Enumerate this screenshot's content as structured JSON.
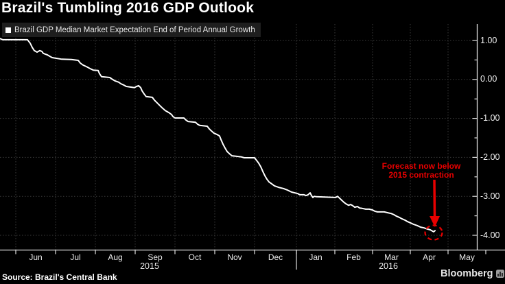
{
  "header": {
    "title": "Brazil's Tumbling 2016 GDP Outlook"
  },
  "legend": {
    "marker": "square-icon",
    "marker_color": "#ffffff",
    "label": "Brazil GDP Median Market Expectation End of Period Annual Growth"
  },
  "annotation": {
    "line1": "Forecast now below",
    "line2": "2015 contraction",
    "color": "#e80000"
  },
  "footer": {
    "source": "Source: Brazil's Central Bank",
    "brand": "Bloomberg"
  },
  "colors": {
    "background": "#000000",
    "line": "#ffffff",
    "axis": "#e0e0e0",
    "grid": "#3b3b3b",
    "accent_red": "#e80000",
    "legend_bg": "#1e1e1e"
  },
  "chart_data": {
    "type": "line",
    "title": "Brazil's Tumbling 2016 GDP Outlook",
    "series_name": "Brazil GDP Median Market Expectation End of Period Annual Growth",
    "x_tick_months": [
      "Jun",
      "Jul",
      "Aug",
      "Sep",
      "Oct",
      "Nov",
      "Dec",
      "Jan",
      "Feb",
      "Mar",
      "Apr",
      "May"
    ],
    "years": [
      "2015",
      "2016"
    ],
    "y_tick_values": [
      1.0,
      0.0,
      -1.0,
      -2.0,
      -3.0,
      -4.0
    ],
    "y_tick_labels": [
      "1.00",
      "0.00",
      "-1.00",
      "-2.00",
      "-3.00",
      "-4.00"
    ],
    "ylim": [
      -4.4,
      1.4
    ],
    "grid": "dotted",
    "legend_position": "top-left",
    "y_axis_side": "right",
    "monthly_values_at_tick": [
      {
        "month": "Jun 2015",
        "value": 1.02
      },
      {
        "month": "Jul 2015",
        "value": 0.55
      },
      {
        "month": "Aug 2015",
        "value": 0.24
      },
      {
        "month": "Sep 2015",
        "value": -0.2
      },
      {
        "month": "Oct 2015",
        "value": -0.98
      },
      {
        "month": "Nov 2015",
        "value": -1.41
      },
      {
        "month": "Dec 2015",
        "value": -2.01
      },
      {
        "month": "Jan 2016",
        "value": -2.92
      },
      {
        "month": "Feb 2016",
        "value": -3.03
      },
      {
        "month": "Mar 2016",
        "value": -3.47
      },
      {
        "month": "Apr 2016",
        "value": -3.7
      },
      {
        "month": "mid-Apr 2016 (final)",
        "value": -3.89
      }
    ],
    "line_points": [
      [
        0,
        1.05
      ],
      [
        4,
        1.02
      ],
      [
        40,
        1.02
      ],
      [
        44,
        0.93
      ],
      [
        47,
        0.82
      ],
      [
        50,
        0.74
      ],
      [
        54,
        0.7
      ],
      [
        58,
        0.74
      ],
      [
        61,
        0.72
      ],
      [
        63,
        0.67
      ],
      [
        66,
        0.65
      ],
      [
        69,
        0.63
      ],
      [
        72,
        0.6
      ],
      [
        76,
        0.56
      ],
      [
        90,
        0.52
      ],
      [
        104,
        0.51
      ],
      [
        114,
        0.49
      ],
      [
        117,
        0.42
      ],
      [
        121,
        0.37
      ],
      [
        126,
        0.33
      ],
      [
        131,
        0.28
      ],
      [
        136,
        0.24
      ],
      [
        143,
        0.23
      ],
      [
        145,
        0.15
      ],
      [
        148,
        0.07
      ],
      [
        160,
        0.05
      ],
      [
        164,
        0.0
      ],
      [
        168,
        -0.04
      ],
      [
        173,
        -0.07
      ],
      [
        176,
        -0.11
      ],
      [
        180,
        -0.14
      ],
      [
        184,
        -0.18
      ],
      [
        196,
        -0.21
      ],
      [
        199,
        -0.18
      ],
      [
        202,
        -0.16
      ],
      [
        205,
        -0.21
      ],
      [
        207,
        -0.29
      ],
      [
        210,
        -0.37
      ],
      [
        213,
        -0.44
      ],
      [
        222,
        -0.46
      ],
      [
        225,
        -0.53
      ],
      [
        229,
        -0.6
      ],
      [
        233,
        -0.67
      ],
      [
        237,
        -0.74
      ],
      [
        241,
        -0.8
      ],
      [
        246,
        -0.85
      ],
      [
        250,
        -0.9
      ],
      [
        252,
        -0.95
      ],
      [
        255,
        -0.99
      ],
      [
        268,
        -0.99
      ],
      [
        271,
        -1.04
      ],
      [
        274,
        -1.08
      ],
      [
        285,
        -1.1
      ],
      [
        288,
        -1.15
      ],
      [
        291,
        -1.18
      ],
      [
        302,
        -1.2
      ],
      [
        305,
        -1.27
      ],
      [
        308,
        -1.32
      ],
      [
        312,
        -1.38
      ],
      [
        316,
        -1.41
      ],
      [
        320,
        -1.45
      ],
      [
        322,
        -1.54
      ],
      [
        325,
        -1.66
      ],
      [
        328,
        -1.76
      ],
      [
        331,
        -1.85
      ],
      [
        334,
        -1.9
      ],
      [
        338,
        -1.96
      ],
      [
        344,
        -1.97
      ],
      [
        352,
        -1.99
      ],
      [
        356,
        -2.01
      ],
      [
        371,
        -2.01
      ],
      [
        374,
        -2.08
      ],
      [
        377,
        -2.15
      ],
      [
        380,
        -2.24
      ],
      [
        383,
        -2.36
      ],
      [
        386,
        -2.47
      ],
      [
        389,
        -2.56
      ],
      [
        392,
        -2.63
      ],
      [
        396,
        -2.68
      ],
      [
        400,
        -2.73
      ],
      [
        406,
        -2.77
      ],
      [
        413,
        -2.8
      ],
      [
        419,
        -2.84
      ],
      [
        425,
        -2.89
      ],
      [
        434,
        -2.93
      ],
      [
        437,
        -2.96
      ],
      [
        443,
        -2.96
      ],
      [
        446,
        -2.98
      ],
      [
        449,
        -2.96
      ],
      [
        452,
        -2.91
      ],
      [
        454,
        -2.98
      ],
      [
        456,
        -3.03
      ],
      [
        458,
        -3.0
      ],
      [
        461,
        -3.01
      ],
      [
        489,
        -3.03
      ],
      [
        492,
        -3.0
      ],
      [
        495,
        -3.05
      ],
      [
        498,
        -3.1
      ],
      [
        501,
        -3.15
      ],
      [
        504,
        -3.19
      ],
      [
        508,
        -3.23
      ],
      [
        511,
        -3.21
      ],
      [
        514,
        -3.24
      ],
      [
        517,
        -3.28
      ],
      [
        521,
        -3.26
      ],
      [
        524,
        -3.3
      ],
      [
        528,
        -3.31
      ],
      [
        533,
        -3.33
      ],
      [
        538,
        -3.33
      ],
      [
        543,
        -3.35
      ],
      [
        546,
        -3.38
      ],
      [
        550,
        -3.4
      ],
      [
        560,
        -3.4
      ],
      [
        565,
        -3.42
      ],
      [
        570,
        -3.44
      ],
      [
        574,
        -3.47
      ],
      [
        578,
        -3.51
      ],
      [
        582,
        -3.54
      ],
      [
        586,
        -3.58
      ],
      [
        590,
        -3.61
      ],
      [
        594,
        -3.65
      ],
      [
        598,
        -3.68
      ],
      [
        603,
        -3.72
      ],
      [
        608,
        -3.75
      ],
      [
        613,
        -3.79
      ],
      [
        618,
        -3.81
      ],
      [
        623,
        -3.84
      ],
      [
        627,
        -3.86
      ],
      [
        630,
        -3.89
      ],
      [
        632,
        -3.91
      ],
      [
        634,
        -3.88
      ]
    ],
    "forecast_marker": {
      "x": 632,
      "value": -3.93,
      "style": "red-dashed-circle"
    }
  }
}
